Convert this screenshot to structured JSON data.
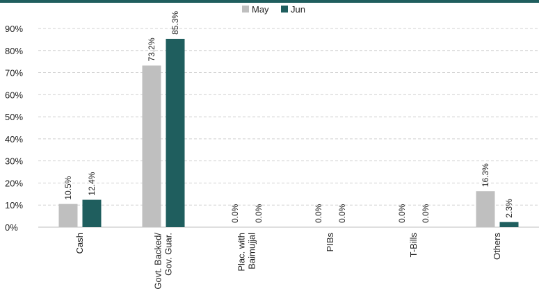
{
  "chart_data": {
    "type": "bar",
    "categories": [
      [
        "Cash"
      ],
      [
        "Govt. Backed/",
        "Gov. Guar."
      ],
      [
        "Plac. with",
        "Baimujjal"
      ],
      [
        "PIBs"
      ],
      [
        "T-Bills"
      ],
      [
        "Others"
      ]
    ],
    "series": [
      {
        "name": "May",
        "color": "#BFBFBF",
        "values": [
          10.5,
          73.2,
          0.0,
          0.0,
          0.0,
          16.3
        ],
        "labels": [
          "10.5%",
          "73.2%",
          "0.0%",
          "0.0%",
          "0.0%",
          "16.3%"
        ]
      },
      {
        "name": "Jun",
        "color": "#1F5E5E",
        "values": [
          12.4,
          85.3,
          0.0,
          0.0,
          0.0,
          2.3
        ],
        "labels": [
          "12.4%",
          "85.3%",
          "0.0%",
          "0.0%",
          "0.0%",
          "2.3%"
        ]
      }
    ],
    "ylim": [
      0,
      90
    ],
    "yticks": [
      "0%",
      "10%",
      "20%",
      "30%",
      "40%",
      "50%",
      "60%",
      "70%",
      "80%",
      "90%"
    ],
    "grid": true,
    "legend_position": "top-center",
    "top_rule_color": "#1F5E5E"
  }
}
